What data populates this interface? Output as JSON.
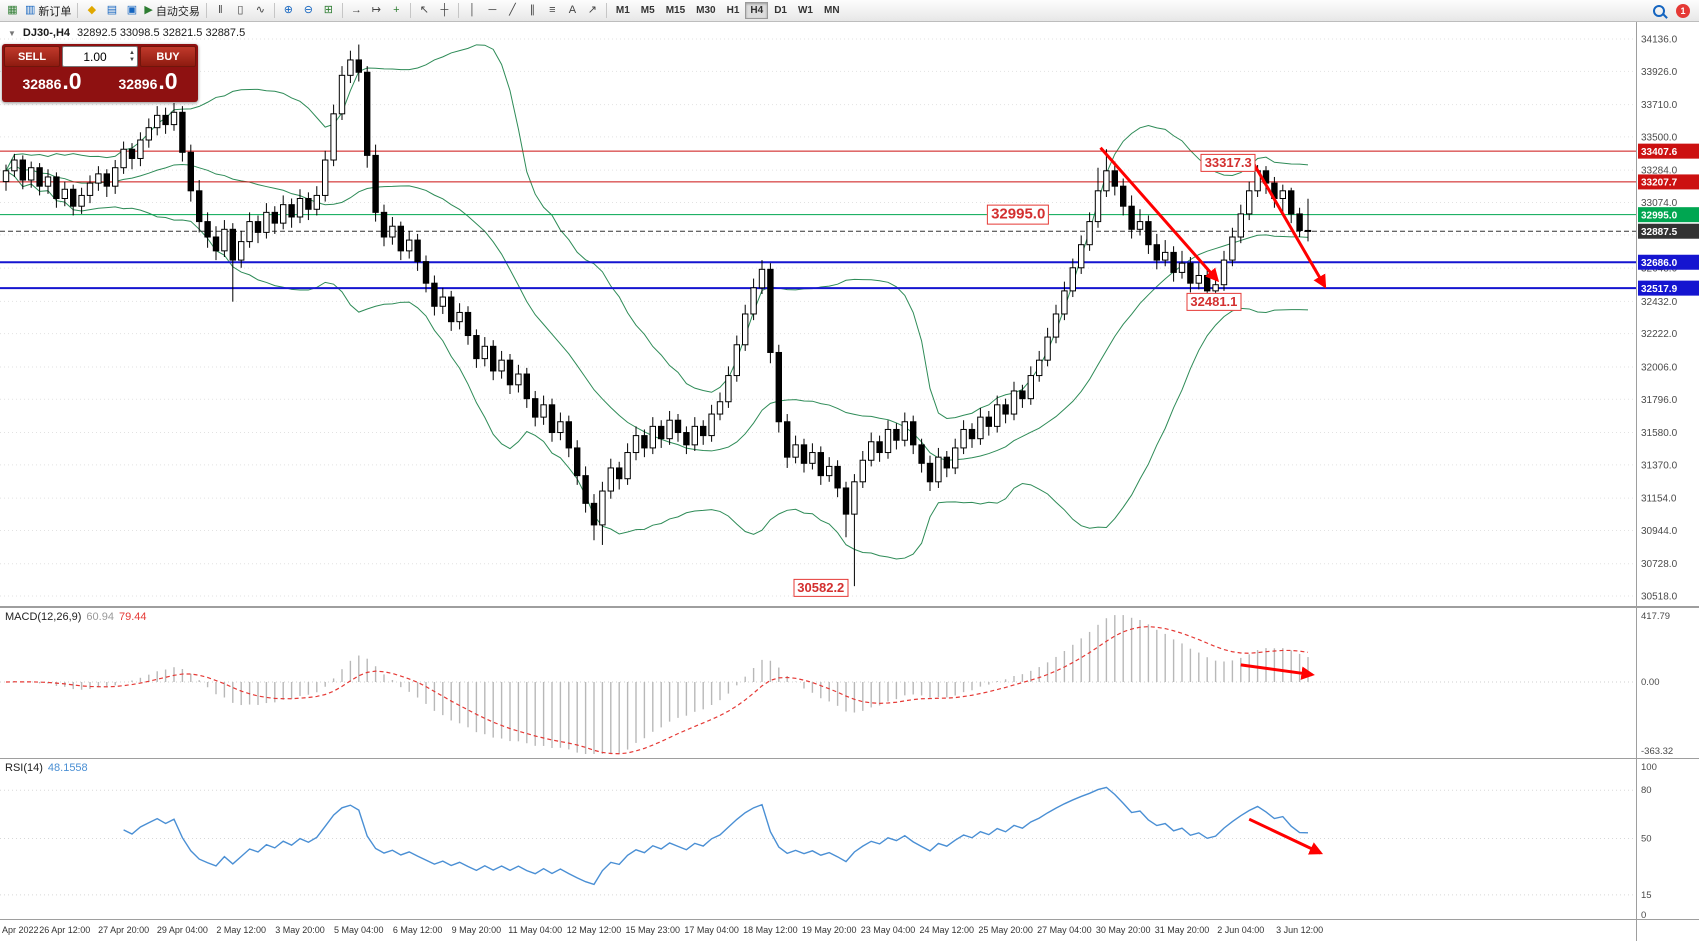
{
  "toolbar": {
    "items": [
      {
        "kind": "icon",
        "name": "new-chart",
        "glyph": "▦",
        "color": "#2e7d32"
      },
      {
        "kind": "icon-label",
        "name": "new-order",
        "glyph": "▥",
        "color": "#1565c0",
        "label": "新订单"
      },
      {
        "kind": "sep"
      },
      {
        "kind": "icon",
        "name": "profile",
        "glyph": "◆",
        "color": "#e0a800"
      },
      {
        "kind": "icon",
        "name": "market-watch",
        "glyph": "▤",
        "color": "#1565c0"
      },
      {
        "kind": "icon",
        "name": "data-window",
        "glyph": "▣",
        "color": "#1565c0"
      },
      {
        "kind": "icon-label",
        "name": "auto-trading",
        "glyph": "▶",
        "color": "#2e7d32",
        "label": "自动交易"
      },
      {
        "kind": "sep"
      },
      {
        "kind": "icon",
        "name": "bar-chart",
        "glyph": "‖",
        "color": "#444444"
      },
      {
        "kind": "icon",
        "name": "candlestick-chart",
        "glyph": "▯",
        "color": "#444444"
      },
      {
        "kind": "icon",
        "name": "line-chart",
        "glyph": "∿",
        "color": "#444444"
      },
      {
        "kind": "sep"
      },
      {
        "kind": "icon",
        "name": "zoom-in",
        "glyph": "⊕",
        "color": "#1565c0"
      },
      {
        "kind": "icon",
        "name": "zoom-out",
        "glyph": "⊖",
        "color": "#1565c0"
      },
      {
        "kind": "icon",
        "name": "tile-windows",
        "glyph": "⊞",
        "color": "#2e7d32"
      },
      {
        "kind": "sep"
      },
      {
        "kind": "icon",
        "name": "auto-scroll",
        "glyph": "→",
        "color": "#444444"
      },
      {
        "kind": "icon",
        "name": "chart-shift",
        "glyph": "↦",
        "color": "#444444"
      },
      {
        "kind": "icon",
        "name": "indicators-add",
        "glyph": "+",
        "color": "#2e7d32"
      },
      {
        "kind": "sep"
      },
      {
        "kind": "icon",
        "name": "cursor",
        "glyph": "↖",
        "color": "#444444"
      },
      {
        "kind": "icon",
        "name": "crosshair",
        "glyph": "┼",
        "color": "#444444"
      },
      {
        "kind": "sep"
      },
      {
        "kind": "icon",
        "name": "vertical-line",
        "glyph": "│",
        "color": "#444444"
      },
      {
        "kind": "icon",
        "name": "horizontal-line",
        "glyph": "─",
        "color": "#444444"
      },
      {
        "kind": "icon",
        "name": "trendline",
        "glyph": "╱",
        "color": "#444444"
      },
      {
        "kind": "icon",
        "name": "equidistant-channel",
        "glyph": "∥",
        "color": "#444444"
      },
      {
        "kind": "icon",
        "name": "fibonacci",
        "glyph": "≡",
        "color": "#444444"
      },
      {
        "kind": "icon",
        "name": "text-label",
        "glyph": "A",
        "color": "#444444"
      },
      {
        "kind": "icon",
        "name": "arrows-tool",
        "glyph": "↗",
        "color": "#444444"
      },
      {
        "kind": "sep"
      }
    ],
    "timeframes": [
      "M1",
      "M5",
      "M15",
      "M30",
      "H1",
      "H4",
      "D1",
      "W1",
      "MN"
    ],
    "active_timeframe": "H4",
    "notification_count": "1"
  },
  "icons": {
    "collapse": "▼",
    "spin_up": "▲",
    "spin_down": "▼"
  },
  "header": {
    "symbol_period": "DJ30-,H4",
    "ohlc": "32892.5 33098.5 32821.5 32887.5"
  },
  "trade_panel": {
    "sell_label": "SELL",
    "buy_label": "BUY",
    "volume": "1.00",
    "bid_main": "32886",
    "bid_pips": ".0",
    "ask_main": "32896",
    "ask_pips": ".0"
  },
  "chart_data": {
    "type": "candlestick",
    "symbol": "DJ30-",
    "timeframe": "H4",
    "price_axis": {
      "ticks": [
        34136.0,
        33926.0,
        33710.0,
        33500.0,
        33284.0,
        33074.0,
        32864.0,
        32648.0,
        32432.0,
        32222.0,
        32006.0,
        31796.0,
        31580.0,
        31370.0,
        31154.0,
        30944.0,
        30728.0,
        30518.0
      ]
    },
    "levels": [
      {
        "value": 33407.6,
        "color": "#cc1111",
        "style": "solid",
        "width": 1
      },
      {
        "value": 33207.7,
        "color": "#cc1111",
        "style": "solid",
        "width": 1
      },
      {
        "value": 32995.0,
        "color": "#00a651",
        "style": "solid",
        "width": 1
      },
      {
        "value": 32686.0,
        "color": "#1515d0",
        "style": "solid",
        "width": 2
      },
      {
        "value": 32517.9,
        "color": "#1515d0",
        "style": "solid",
        "width": 2
      },
      {
        "value": 32887.5,
        "color": "#333333",
        "style": "dashed",
        "width": 1
      }
    ],
    "annotations": [
      {
        "text": "33317.3",
        "index": 145.5,
        "price": 33330,
        "font": 13
      },
      {
        "text": "32995.0",
        "index": 120.5,
        "price": 32995,
        "font": 15
      },
      {
        "text": "32481.1",
        "index": 143.8,
        "price": 32430,
        "font": 13
      },
      {
        "text": "30582.2",
        "index": 97.0,
        "price": 30570,
        "font": 13
      }
    ],
    "trend_arrows": [
      {
        "panel": "main",
        "from": {
          "index": 130.3,
          "price": 33430
        },
        "to": {
          "index": 144.2,
          "price": 32570
        }
      },
      {
        "panel": "main",
        "from": {
          "index": 148.6,
          "price": 33320
        },
        "to": {
          "index": 157.0,
          "price": 32530
        }
      },
      {
        "panel": "macd",
        "from": {
          "index": 147.0,
          "value": 105
        },
        "to": {
          "index": 155.5,
          "value": 45
        }
      },
      {
        "panel": "rsi",
        "from": {
          "index": 148.0,
          "value": 62
        },
        "to": {
          "index": 156.5,
          "value": 41
        }
      }
    ],
    "time_labels": [
      "Apr 2022",
      "26 Apr 12:00",
      "27 Apr 20:00",
      "29 Apr 04:00",
      "2 May 12:00",
      "3 May 20:00",
      "5 May 04:00",
      "6 May 12:00",
      "9 May 20:00",
      "11 May 04:00",
      "12 May 12:00",
      "15 May 23:00",
      "17 May 04:00",
      "18 May 12:00",
      "19 May 20:00",
      "23 May 04:00",
      "24 May 12:00",
      "25 May 20:00",
      "27 May 04:00",
      "30 May 20:00",
      "31 May 20:00",
      "2 Jun 04:00",
      "3 Jun 12:00"
    ],
    "indicators": {
      "bollinger": {
        "period": 20,
        "deviation": 2,
        "color": "#2e8b57"
      },
      "macd": {
        "label": "MACD(12,26,9)",
        "value_main": "60.94",
        "value_signal": "79.44",
        "axis_labels": [
          "417.79",
          "0.00",
          "-363.32"
        ],
        "hist_color": "#b8b8b8",
        "signal_color": "#e53935"
      },
      "rsi": {
        "label": "RSI(14)",
        "value": "48.1558",
        "axis_ticks": [
          100,
          80,
          50,
          15,
          0
        ],
        "color": "#4a8fd4"
      }
    },
    "candles": [
      [
        33210,
        33320,
        33150,
        33280
      ],
      [
        33280,
        33390,
        33240,
        33350
      ],
      [
        33350,
        33380,
        33160,
        33220
      ],
      [
        33220,
        33340,
        33170,
        33300
      ],
      [
        33300,
        33330,
        33120,
        33180
      ],
      [
        33180,
        33290,
        33130,
        33240
      ],
      [
        33240,
        33270,
        33040,
        33100
      ],
      [
        33100,
        33210,
        33050,
        33160
      ],
      [
        33160,
        33190,
        32990,
        33050
      ],
      [
        33050,
        33170,
        33000,
        33120
      ],
      [
        33120,
        33250,
        33070,
        33200
      ],
      [
        33200,
        33310,
        33150,
        33260
      ],
      [
        33260,
        33290,
        33110,
        33180
      ],
      [
        33180,
        33350,
        33130,
        33300
      ],
      [
        33300,
        33470,
        33260,
        33420
      ],
      [
        33420,
        33460,
        33290,
        33360
      ],
      [
        33360,
        33530,
        33310,
        33480
      ],
      [
        33480,
        33620,
        33430,
        33560
      ],
      [
        33560,
        33700,
        33510,
        33640
      ],
      [
        33640,
        33690,
        33520,
        33580
      ],
      [
        33580,
        33720,
        33540,
        33660
      ],
      [
        33660,
        33700,
        33340,
        33400
      ],
      [
        33400,
        33450,
        33080,
        33150
      ],
      [
        33150,
        33220,
        32880,
        32950
      ],
      [
        32950,
        33010,
        32780,
        32850
      ],
      [
        32850,
        32920,
        32700,
        32760
      ],
      [
        32760,
        32960,
        32720,
        32900
      ],
      [
        32900,
        32940,
        32430,
        32700
      ],
      [
        32700,
        32890,
        32650,
        32820
      ],
      [
        32820,
        33010,
        32780,
        32950
      ],
      [
        32950,
        32990,
        32810,
        32880
      ],
      [
        32880,
        33070,
        32840,
        33010
      ],
      [
        33010,
        33050,
        32870,
        32940
      ],
      [
        32940,
        33120,
        32900,
        33060
      ],
      [
        33060,
        33100,
        32910,
        32980
      ],
      [
        32980,
        33160,
        32940,
        33100
      ],
      [
        33100,
        33140,
        32960,
        33030
      ],
      [
        33030,
        33180,
        32990,
        33120
      ],
      [
        33120,
        33410,
        33080,
        33350
      ],
      [
        33350,
        33710,
        33310,
        33650
      ],
      [
        33650,
        33960,
        33610,
        33900
      ],
      [
        33900,
        34060,
        33850,
        34000
      ],
      [
        34000,
        34100,
        33860,
        33920
      ],
      [
        33920,
        33960,
        33300,
        33380
      ],
      [
        33380,
        33450,
        32950,
        33010
      ],
      [
        33010,
        33060,
        32790,
        32850
      ],
      [
        32850,
        32980,
        32800,
        32920
      ],
      [
        32920,
        32950,
        32700,
        32760
      ],
      [
        32760,
        32890,
        32710,
        32830
      ],
      [
        32830,
        32870,
        32630,
        32690
      ],
      [
        32690,
        32730,
        32490,
        32550
      ],
      [
        32550,
        32600,
        32340,
        32400
      ],
      [
        32400,
        32520,
        32350,
        32460
      ],
      [
        32460,
        32500,
        32240,
        32300
      ],
      [
        32300,
        32420,
        32250,
        32360
      ],
      [
        32360,
        32400,
        32150,
        32210
      ],
      [
        32210,
        32250,
        32000,
        32060
      ],
      [
        32060,
        32200,
        32010,
        32140
      ],
      [
        32140,
        32180,
        31920,
        31980
      ],
      [
        31980,
        32110,
        31930,
        32050
      ],
      [
        32050,
        32090,
        31830,
        31890
      ],
      [
        31890,
        32020,
        31840,
        31960
      ],
      [
        31960,
        32000,
        31740,
        31800
      ],
      [
        31800,
        31850,
        31620,
        31680
      ],
      [
        31680,
        31820,
        31630,
        31760
      ],
      [
        31760,
        31800,
        31520,
        31580
      ],
      [
        31580,
        31710,
        31530,
        31650
      ],
      [
        31650,
        31690,
        31420,
        31480
      ],
      [
        31480,
        31530,
        31240,
        31300
      ],
      [
        31300,
        31360,
        31060,
        31120
      ],
      [
        31120,
        31180,
        30880,
        30980
      ],
      [
        30980,
        31260,
        30850,
        31200
      ],
      [
        31200,
        31410,
        31150,
        31350
      ],
      [
        31350,
        31390,
        31210,
        31280
      ],
      [
        31280,
        31510,
        31240,
        31450
      ],
      [
        31450,
        31620,
        31400,
        31560
      ],
      [
        31560,
        31600,
        31420,
        31480
      ],
      [
        31480,
        31680,
        31440,
        31620
      ],
      [
        31620,
        31660,
        31480,
        31540
      ],
      [
        31540,
        31720,
        31500,
        31660
      ],
      [
        31660,
        31700,
        31520,
        31580
      ],
      [
        31580,
        31620,
        31440,
        31500
      ],
      [
        31500,
        31680,
        31460,
        31620
      ],
      [
        31620,
        31660,
        31500,
        31560
      ],
      [
        31560,
        31760,
        31520,
        31700
      ],
      [
        31700,
        31840,
        31660,
        31780
      ],
      [
        31780,
        32010,
        31740,
        31950
      ],
      [
        31950,
        32210,
        31910,
        32150
      ],
      [
        32150,
        32410,
        32110,
        32350
      ],
      [
        32350,
        32580,
        32310,
        32520
      ],
      [
        32520,
        32700,
        32480,
        32640
      ],
      [
        32640,
        32680,
        32030,
        32100
      ],
      [
        32100,
        32150,
        31580,
        31650
      ],
      [
        31650,
        31700,
        31350,
        31420
      ],
      [
        31420,
        31560,
        31380,
        31500
      ],
      [
        31500,
        31540,
        31320,
        31380
      ],
      [
        31380,
        31510,
        31340,
        31450
      ],
      [
        31450,
        31490,
        31240,
        31300
      ],
      [
        31300,
        31420,
        31260,
        31360
      ],
      [
        31360,
        31400,
        31160,
        31220
      ],
      [
        31220,
        31260,
        30900,
        31050
      ],
      [
        31050,
        31310,
        30582.2,
        31260
      ],
      [
        31260,
        31460,
        31220,
        31400
      ],
      [
        31400,
        31580,
        31360,
        31520
      ],
      [
        31520,
        31560,
        31390,
        31450
      ],
      [
        31450,
        31660,
        31410,
        31600
      ],
      [
        31600,
        31640,
        31470,
        31530
      ],
      [
        31530,
        31710,
        31490,
        31650
      ],
      [
        31650,
        31690,
        31440,
        31500
      ],
      [
        31500,
        31540,
        31320,
        31380
      ],
      [
        31380,
        31430,
        31200,
        31260
      ],
      [
        31260,
        31480,
        31220,
        31420
      ],
      [
        31420,
        31460,
        31290,
        31350
      ],
      [
        31350,
        31540,
        31310,
        31480
      ],
      [
        31480,
        31660,
        31440,
        31600
      ],
      [
        31600,
        31640,
        31480,
        31540
      ],
      [
        31540,
        31740,
        31500,
        31680
      ],
      [
        31680,
        31720,
        31560,
        31620
      ],
      [
        31620,
        31820,
        31580,
        31760
      ],
      [
        31760,
        31800,
        31640,
        31700
      ],
      [
        31700,
        31910,
        31660,
        31850
      ],
      [
        31850,
        31890,
        31740,
        31800
      ],
      [
        31800,
        32010,
        31760,
        31950
      ],
      [
        31950,
        32110,
        31910,
        32050
      ],
      [
        32050,
        32260,
        32010,
        32200
      ],
      [
        32200,
        32410,
        32160,
        32350
      ],
      [
        32350,
        32560,
        32310,
        32500
      ],
      [
        32500,
        32710,
        32460,
        32650
      ],
      [
        32650,
        32860,
        32610,
        32800
      ],
      [
        32800,
        33010,
        32760,
        32950
      ],
      [
        32950,
        33300,
        32910,
        33150
      ],
      [
        33150,
        33420,
        33110,
        33280
      ],
      [
        33280,
        33340,
        33120,
        33180
      ],
      [
        33180,
        33230,
        32990,
        33050
      ],
      [
        33050,
        33120,
        32840,
        32900
      ],
      [
        32900,
        33030,
        32860,
        32950
      ],
      [
        32950,
        32990,
        32740,
        32800
      ],
      [
        32800,
        32870,
        32640,
        32700
      ],
      [
        32700,
        32830,
        32660,
        32750
      ],
      [
        32750,
        32790,
        32560,
        32620
      ],
      [
        32620,
        32760,
        32580,
        32680
      ],
      [
        32680,
        32720,
        32490,
        32550
      ],
      [
        32550,
        32680,
        32510,
        32600
      ],
      [
        32600,
        32640,
        32440,
        32500
      ],
      [
        32500,
        32580,
        32481.1,
        32540
      ],
      [
        32540,
        32760,
        32500,
        32700
      ],
      [
        32700,
        32910,
        32660,
        32850
      ],
      [
        32850,
        33060,
        32810,
        33000
      ],
      [
        33000,
        33210,
        32960,
        33150
      ],
      [
        33150,
        33317.3,
        33110,
        33280
      ],
      [
        33280,
        33310,
        33130,
        33200
      ],
      [
        33200,
        33240,
        33040,
        33100
      ],
      [
        33100,
        33190,
        33000,
        33150
      ],
      [
        33150,
        33170,
        32940,
        33000
      ],
      [
        33000,
        33040,
        32850,
        32892
      ],
      [
        32892.5,
        33098.5,
        32821.5,
        32887.5
      ]
    ]
  }
}
